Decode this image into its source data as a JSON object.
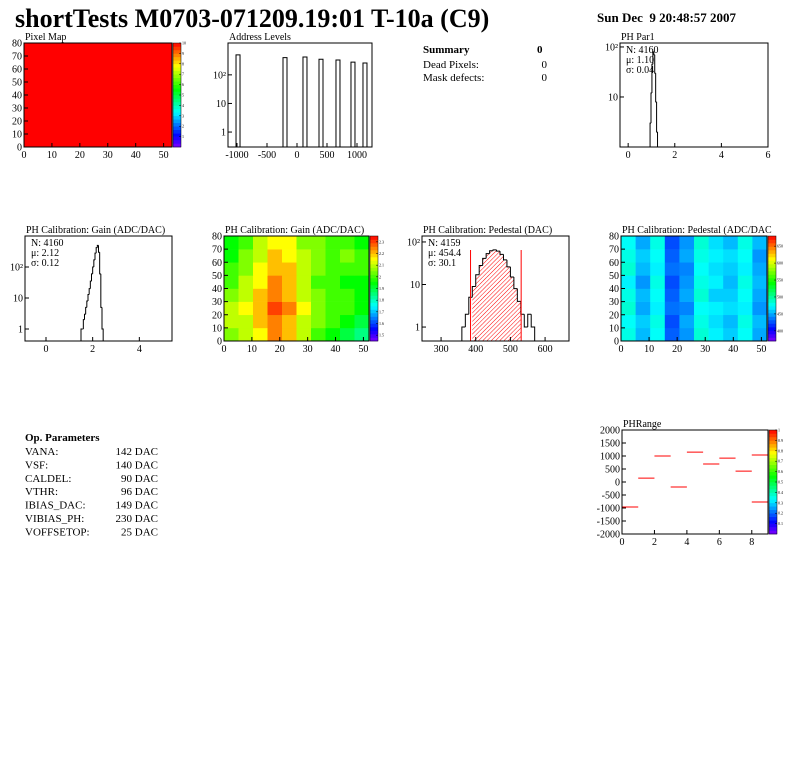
{
  "header": {
    "title": "shortTests M0703-071209.19:01 T-10a (C9)",
    "date": "Sun Dec  9 20:48:57 2007"
  },
  "summary": {
    "title": "Summary",
    "value": "0",
    "rows": [
      [
        "Dead Pixels:",
        "0"
      ],
      [
        "Mask defects:",
        "0"
      ]
    ]
  },
  "op_parameters": {
    "title": "Op. Parameters",
    "rows": [
      [
        "VANA:",
        "142 DAC"
      ],
      [
        "VSF:",
        "140 DAC"
      ],
      [
        "CALDEL:",
        "90 DAC"
      ],
      [
        "VTHR:",
        "96 DAC"
      ],
      [
        "IBIAS_DAC:",
        "149 DAC"
      ],
      [
        "VIBIAS_PH:",
        "230 DAC"
      ],
      [
        "VOFFSETOP:",
        "25 DAC"
      ]
    ]
  },
  "chart_data": [
    {
      "type": "heatmap",
      "title": "Pixel Map",
      "xlim": [
        0,
        53
      ],
      "ylim": [
        0,
        80
      ],
      "xticks": [
        0,
        10,
        20,
        30,
        40,
        50
      ],
      "yticks": [
        0,
        10,
        20,
        30,
        40,
        50,
        60,
        70,
        80
      ],
      "z": [
        [
          10
        ]
      ],
      "zlim": [
        0,
        10
      ],
      "zticks": [
        1,
        2,
        3,
        4,
        5,
        6,
        7,
        8,
        9,
        10
      ]
    },
    {
      "type": "bar",
      "title": "Address Levels",
      "xlim": [
        -1150,
        1250
      ],
      "ylim": [
        0.3,
        1300
      ],
      "log_y": true,
      "xticks": [
        -1000,
        -500,
        0,
        500,
        1000
      ],
      "yticks": [
        1,
        10,
        {
          "value": 100,
          "label": "10²"
        }
      ],
      "x": [
        -983,
        -200,
        133,
        400,
        683,
        933,
        1133
      ],
      "values": [
        500,
        400,
        420,
        350,
        330,
        280,
        260
      ],
      "color": "#000000"
    },
    {
      "type": "histogram",
      "title": "PH Par1",
      "xlim": [
        -0.35,
        6
      ],
      "ylim": [
        1,
        120
      ],
      "log_y": true,
      "xticks": [
        0,
        2,
        4,
        6
      ],
      "yticks": [
        10,
        {
          "value": 100,
          "label": "10²"
        }
      ],
      "bins": [
        0.9,
        0.94,
        0.98,
        1.02,
        1.06,
        1.1,
        1.14,
        1.18,
        1.22,
        1.26,
        1.3
      ],
      "values": [
        1,
        3,
        12,
        45,
        80,
        70,
        30,
        8,
        2,
        1
      ],
      "color": "#000000",
      "stats": [
        "N: 4160",
        "μ: 1.10",
        "σ: 0.04"
      ]
    },
    {
      "type": "histogram",
      "title": "PH Calibration: Gain (ADC/DAC)",
      "xlim": [
        -0.9,
        5.4
      ],
      "ylim": [
        0.41,
        1000
      ],
      "log_y": true,
      "xticks": [
        0,
        2,
        4
      ],
      "yticks": [
        1,
        10,
        {
          "value": 100,
          "label": "10²"
        }
      ],
      "bins": [
        1.5,
        1.55,
        1.6,
        1.65,
        1.7,
        1.75,
        1.8,
        1.85,
        1.9,
        1.95,
        2.0,
        2.05,
        2.1,
        2.15,
        2.2,
        2.25,
        2.3,
        2.35,
        2.4,
        2.45
      ],
      "values": [
        1,
        1,
        2,
        3,
        5,
        8,
        13,
        20,
        35,
        60,
        100,
        170,
        280,
        420,
        500,
        300,
        60,
        5,
        1
      ],
      "color": "#000000",
      "stats": [
        "N: 4160",
        "μ: 2.12",
        "σ: 0.12"
      ]
    },
    {
      "type": "heatmap",
      "title": "PH Calibration: Gain (ADC/DAC)",
      "xlim": [
        0,
        52
      ],
      "ylim": [
        0,
        80
      ],
      "xticks": [
        0,
        10,
        20,
        30,
        40,
        50
      ],
      "yticks": [
        0,
        10,
        20,
        30,
        40,
        50,
        60,
        70,
        80
      ],
      "z": [
        [
          2.05,
          2.1,
          2.15,
          2.25,
          2.2,
          2.1,
          2.0,
          1.95,
          1.9,
          1.85
        ],
        [
          2.1,
          2.1,
          2.2,
          2.25,
          2.2,
          2.1,
          2.05,
          2.0,
          1.95,
          1.9
        ],
        [
          2.1,
          2.15,
          2.2,
          2.3,
          2.25,
          2.15,
          2.05,
          2.0,
          2.0,
          1.95
        ],
        [
          2.05,
          2.1,
          2.2,
          2.25,
          2.2,
          2.1,
          2.05,
          2.0,
          2.0,
          1.95
        ],
        [
          2.0,
          2.1,
          2.15,
          2.25,
          2.2,
          2.1,
          2.0,
          2.0,
          1.95,
          1.95
        ],
        [
          2.0,
          2.05,
          2.15,
          2.2,
          2.2,
          2.1,
          2.05,
          2.0,
          2.0,
          2.0
        ],
        [
          1.95,
          2.05,
          2.1,
          2.2,
          2.15,
          2.1,
          2.05,
          2.0,
          2.05,
          2.0
        ],
        [
          1.95,
          2.0,
          2.1,
          2.15,
          2.15,
          2.05,
          2.05,
          2.0,
          2.0,
          1.95
        ]
      ],
      "zlim": [
        1.45,
        2.35
      ],
      "zticks": [
        1.5,
        1.6,
        1.7,
        1.8,
        1.9,
        2,
        2.1,
        2.2,
        2.3
      ]
    },
    {
      "type": "histogram",
      "title": "PH Calibration: Pedestal (DAC)",
      "xlim": [
        245,
        669
      ],
      "ylim": [
        0.47,
        138
      ],
      "log_y": true,
      "xticks": [
        300,
        400,
        500,
        600
      ],
      "yticks": [
        1,
        10,
        {
          "value": 100,
          "label": "10²"
        }
      ],
      "bins": [
        360,
        370,
        380,
        390,
        400,
        410,
        420,
        430,
        440,
        450,
        460,
        470,
        480,
        490,
        500,
        510,
        520,
        530,
        540,
        550,
        560,
        570
      ],
      "values": [
        1,
        2,
        5,
        9,
        17,
        28,
        41,
        53,
        62,
        65,
        61,
        51,
        38,
        26,
        15,
        8,
        4,
        2,
        1,
        2,
        1
      ],
      "color": "#000000",
      "cuts": [
        385,
        531
      ],
      "cut_color": "#ff0000",
      "stats": [
        "N: 4159",
        "μ: 454.4",
        "σ: 30.1"
      ],
      "stats_colors": [
        "#000000",
        "#ff0000",
        "#ff0000"
      ]
    },
    {
      "type": "heatmap",
      "title": "PH Calibration: Pedestal (ADC/DAC",
      "xlim": [
        0,
        52
      ],
      "ylim": [
        0,
        80
      ],
      "xticks": [
        0,
        10,
        20,
        30,
        40,
        50
      ],
      "yticks": [
        0,
        10,
        20,
        30,
        40,
        50,
        60,
        70,
        80
      ],
      "z": [
        [
          480,
          455,
          475,
          430,
          445,
          485,
          470,
          460,
          475,
          450
        ],
        [
          475,
          460,
          480,
          425,
          450,
          480,
          465,
          455,
          480,
          455
        ],
        [
          485,
          450,
          470,
          435,
          440,
          475,
          470,
          465,
          470,
          445
        ],
        [
          480,
          455,
          475,
          430,
          450,
          485,
          460,
          460,
          475,
          450
        ],
        [
          470,
          445,
          480,
          425,
          445,
          480,
          470,
          455,
          480,
          455
        ],
        [
          485,
          455,
          470,
          435,
          440,
          475,
          465,
          460,
          470,
          450
        ],
        [
          480,
          460,
          475,
          430,
          450,
          480,
          470,
          465,
          475,
          445
        ],
        [
          475,
          450,
          480,
          425,
          445,
          485,
          465,
          455,
          480,
          455
        ]
      ],
      "zlim": [
        370,
        680
      ],
      "zticks": [
        400,
        450,
        500,
        550,
        600,
        650
      ]
    },
    {
      "type": "scatter",
      "title": "PHRange",
      "xlim": [
        0,
        9
      ],
      "ylim": [
        -2000,
        2000
      ],
      "xticks": [
        0,
        2,
        4,
        6,
        8
      ],
      "yticks": [
        -2000,
        -1500,
        -1000,
        -500,
        0,
        500,
        1000,
        1500,
        2000
      ],
      "x": [
        0.5,
        1.5,
        2.5,
        3.5,
        4.5,
        5.5,
        6.5,
        7.5,
        8.5,
        8.5
      ],
      "values": [
        -960,
        150,
        1000,
        -190,
        1150,
        690,
        920,
        420,
        1040,
        -770
      ],
      "color": "#ff0000",
      "zlim": [
        0,
        1
      ],
      "zticks": [
        0.1,
        0.2,
        0.3,
        0.4,
        0.5,
        0.6,
        0.7,
        0.8,
        0.9,
        1
      ]
    }
  ]
}
